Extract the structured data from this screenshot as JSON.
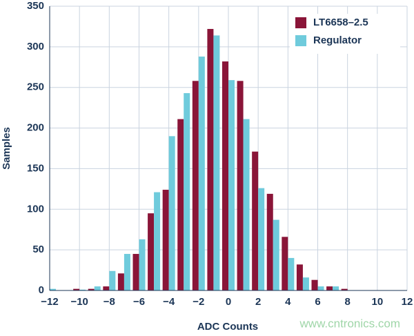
{
  "chart_data": {
    "type": "bar",
    "x_label": "ADC Counts",
    "y_label": "Samples",
    "watermark": "www.cntronics.com",
    "x": [
      -12,
      -11,
      -10,
      -9,
      -8,
      -7,
      -6,
      -5,
      -4,
      -3,
      -2,
      -1,
      0,
      1,
      2,
      3,
      4,
      5,
      6,
      7,
      8
    ],
    "series": [
      {
        "name": "LT6658–2.5",
        "color": "#8a1538",
        "values": [
          null,
          null,
          2,
          2,
          5,
          21,
          45,
          95,
          124,
          211,
          258,
          322,
          282,
          258,
          171,
          119,
          66,
          32,
          13,
          5,
          2
        ]
      },
      {
        "name": "Regulator",
        "color": "#6fcbdc",
        "values": [
          2,
          null,
          1,
          5,
          24,
          45,
          63,
          121,
          190,
          243,
          288,
          314,
          259,
          211,
          126,
          87,
          40,
          16,
          5,
          5,
          null
        ]
      }
    ],
    "xlim": [
      -12,
      12
    ],
    "xticks": [
      {
        "value": -12,
        "label": "−12"
      },
      {
        "value": -10,
        "label": "−10"
      },
      {
        "value": -8,
        "label": "−8"
      },
      {
        "value": -6,
        "label": "−6"
      },
      {
        "value": -4,
        "label": "−4"
      },
      {
        "value": -2,
        "label": "−2"
      },
      0,
      2,
      4,
      6,
      8,
      10,
      12
    ],
    "ylim": [
      0,
      350
    ],
    "yticks": [
      0,
      50,
      100,
      150,
      200,
      250,
      300,
      350
    ],
    "grid": true,
    "legend": "top-right"
  }
}
